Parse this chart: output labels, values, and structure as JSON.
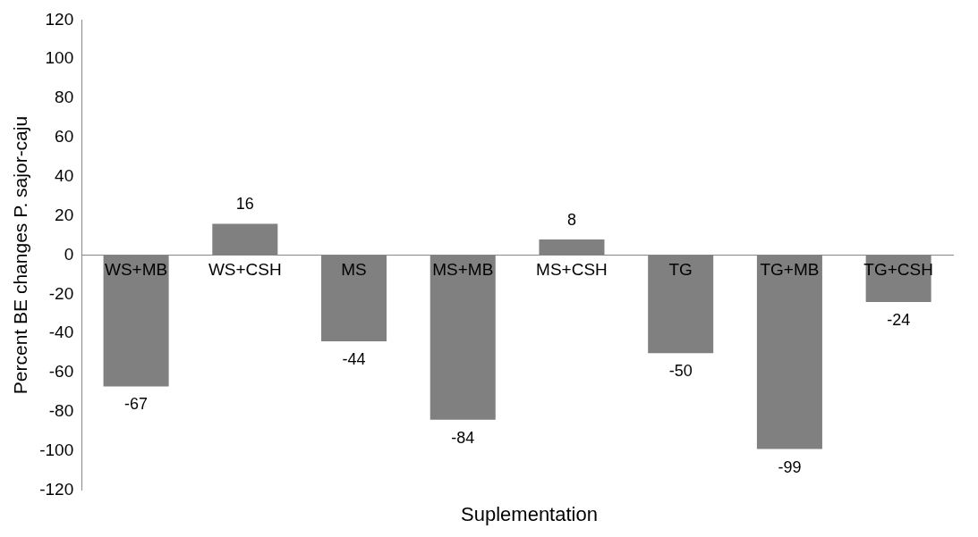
{
  "chart_data": {
    "type": "bar",
    "xlabel": "Suplementation",
    "ylabel": "Percent BE changes P. sajor-caju",
    "categories": [
      "WS+MB",
      "WS+CSH",
      "MS",
      "MS+MB",
      "MS+CSH",
      "TG",
      "TG+MB",
      "TG+CSH"
    ],
    "values": [
      -67,
      16,
      -44,
      -84,
      8,
      -50,
      -99,
      -24
    ],
    "color": "#808080",
    "ylim": [
      -120,
      120
    ],
    "yticks": [
      -120,
      -100,
      -80,
      -60,
      -40,
      -20,
      0,
      20,
      40,
      60,
      80,
      100,
      120
    ],
    "grid": false,
    "legend": false,
    "data_labels": true
  }
}
